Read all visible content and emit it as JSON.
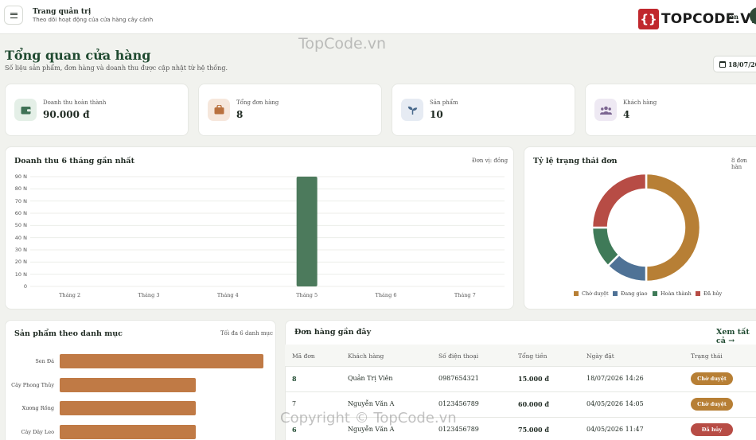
{
  "header": {
    "app_title": "Trang quản trị",
    "app_subtitle": "Theo dõi hoạt động của cửa hàng cây cảnh",
    "logo_text": "TOPCODE.VN",
    "user_name": "iên"
  },
  "page": {
    "title": "Tổng quan cửa hàng",
    "subtitle": "Số liệu sản phẩm, đơn hàng và doanh thu được cập nhật từ hệ thống.",
    "date": "18/07/20"
  },
  "stats": [
    {
      "label": "Doanh thu hoàn thành",
      "value": "90.000 đ",
      "icon": "wallet-icon",
      "bg": "#e4efe7",
      "fg": "#3f7256"
    },
    {
      "label": "Tổng đơn hàng",
      "value": "8",
      "icon": "bag-icon",
      "bg": "#f6e7dc",
      "fg": "#b9713f"
    },
    {
      "label": "Sản phẩm",
      "value": "10",
      "icon": "sprout-icon",
      "bg": "#e6ebf3",
      "fg": "#4a6a8c"
    },
    {
      "label": "Khách hàng",
      "value": "4",
      "icon": "users-icon",
      "bg": "#eee9f3",
      "fg": "#7b6591"
    }
  ],
  "revenue": {
    "title": "Doanh thu 6 tháng gần nhất",
    "unit_note": "Đơn vị: đồng"
  },
  "status_panel": {
    "title": "Tỷ lệ trạng thái đơn",
    "count_note": "8 đơn hàn"
  },
  "category_panel": {
    "title": "Sản phẩm theo danh mục",
    "note": "Tối đa 6 danh mục"
  },
  "chart_data": [
    {
      "type": "bar",
      "categories": [
        "Tháng 2",
        "Tháng 3",
        "Tháng 4",
        "Tháng 5",
        "Tháng 6",
        "Tháng 7"
      ],
      "values": [
        0,
        0,
        0,
        90000,
        0,
        0
      ],
      "y_tick_labels": [
        "90 N",
        "80 N",
        "70 N",
        "60 N",
        "50 N",
        "40 N",
        "30 N",
        "20 N",
        "10 N",
        "0"
      ],
      "ylim": [
        0,
        90000
      ],
      "grid": true,
      "color": "#4c7a5c"
    },
    {
      "type": "pie",
      "donut": true,
      "labels": [
        "Chờ duyệt",
        "Đang giao",
        "Hoàn thành",
        "Đã hủy"
      ],
      "values": [
        4,
        1,
        1,
        2
      ],
      "colors": [
        "#b77f35",
        "#4f7296",
        "#3f7a58",
        "#b74c45"
      ],
      "legend": "bottom"
    },
    {
      "type": "bar",
      "orientation": "horizontal",
      "categories": [
        "Sen Đá",
        "Cây Phong Thủy",
        "Xương Rồng",
        "Cây Dây Leo"
      ],
      "values": [
        3,
        2,
        2,
        2
      ],
      "xlim": [
        0,
        3
      ],
      "color": "#c07a45"
    }
  ],
  "orders": {
    "title": "Đơn hàng gần đây",
    "view_all": "Xem tất cả →",
    "columns": [
      "Mã đơn",
      "Khách hàng",
      "Số điện thoại",
      "Tổng tiền",
      "Ngày đặt",
      "Trạng thái"
    ],
    "rows": [
      {
        "id": "8",
        "customer": "Quản Trị Viên",
        "phone": "0987654321",
        "total": "15.000 đ",
        "date": "18/07/2026 14:26",
        "status": "Chờ duyệt",
        "status_color": "#b77f35"
      },
      {
        "id": "7",
        "customer": "Nguyễn Văn A",
        "phone": "0123456789",
        "total": "60.000 đ",
        "date": "04/05/2026 14:05",
        "status": "Chờ duyệt",
        "status_color": "#b77f35"
      },
      {
        "id": "6",
        "customer": "Nguyễn Văn A",
        "phone": "0123456789",
        "total": "75.000 đ",
        "date": "04/05/2026 11:47",
        "status": "Đã hủy",
        "status_color": "#b74c45"
      }
    ]
  },
  "watermarks": {
    "top": "TopCode.vn",
    "bottom": "Copyright © TopCode.vn"
  }
}
